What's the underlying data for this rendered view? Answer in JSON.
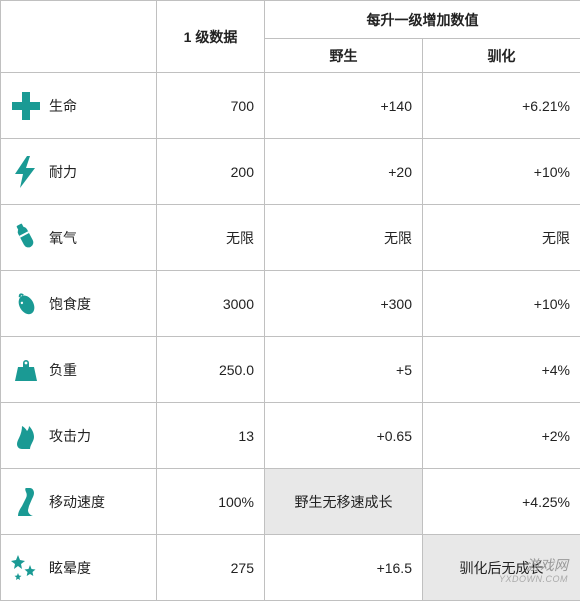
{
  "headers": {
    "lvl1": "1 级数据",
    "increase": "每升一级增加数值",
    "wild": "野生",
    "tamed": "驯化"
  },
  "icon_color": "#1a9a94",
  "border_color": "#c0c0c0",
  "shaded_bg": "#e8e8e8",
  "stats": [
    {
      "key": "health",
      "label": "生命",
      "lvl1": "700",
      "wild": "+140",
      "tamed": "+6.21%",
      "wild_shaded": false,
      "tamed_shaded": false
    },
    {
      "key": "stamina",
      "label": "耐力",
      "lvl1": "200",
      "wild": "+20",
      "tamed": "+10%",
      "wild_shaded": false,
      "tamed_shaded": false
    },
    {
      "key": "oxygen",
      "label": "氧气",
      "lvl1": "无限",
      "wild": "无限",
      "tamed": "无限",
      "wild_shaded": false,
      "tamed_shaded": false
    },
    {
      "key": "food",
      "label": "饱食度",
      "lvl1": "3000",
      "wild": "+300",
      "tamed": "+10%",
      "wild_shaded": false,
      "tamed_shaded": false
    },
    {
      "key": "weight",
      "label": "负重",
      "lvl1": "250.0",
      "wild": "+5",
      "tamed": "+4%",
      "wild_shaded": false,
      "tamed_shaded": false
    },
    {
      "key": "melee",
      "label": "攻击力",
      "lvl1": "13",
      "wild": "+0.65",
      "tamed": "+2%",
      "wild_shaded": false,
      "tamed_shaded": false
    },
    {
      "key": "speed",
      "label": "移动速度",
      "lvl1": "100%",
      "wild": "野生无移速成长",
      "tamed": "+4.25%",
      "wild_shaded": true,
      "tamed_shaded": false
    },
    {
      "key": "torpor",
      "label": "眩晕度",
      "lvl1": "275",
      "wild": "+16.5",
      "tamed": "驯化后无成长",
      "wild_shaded": false,
      "tamed_shaded": true
    }
  ],
  "watermark": {
    "line1": "游戏网",
    "line2": "YXDOWN.COM"
  }
}
